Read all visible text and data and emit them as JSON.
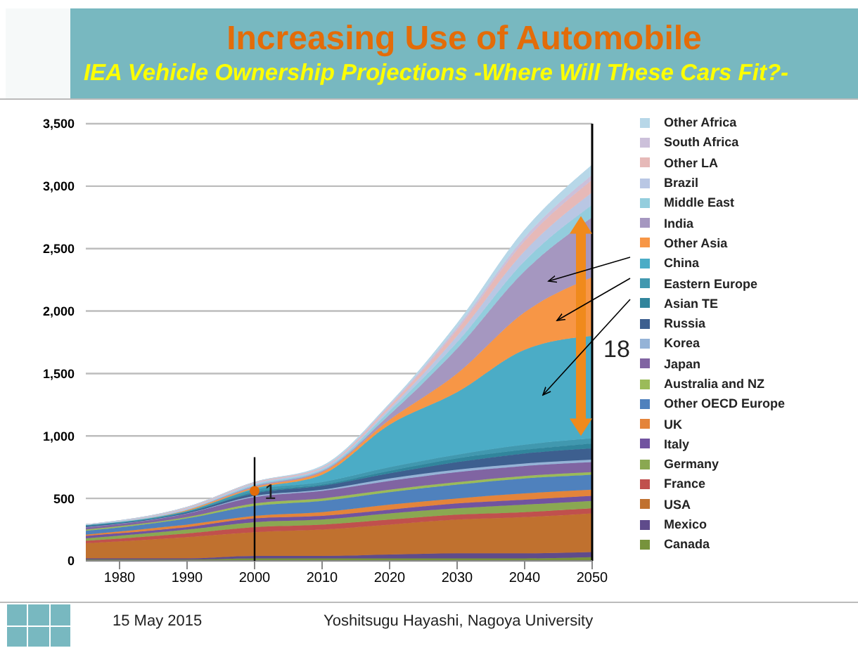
{
  "chart_data": {
    "type": "area",
    "title": "Increasing Use of Automobile",
    "subtitle": "IEA Vehicle Ownership Projections  -Where Will These Cars Fit?-",
    "stacked": true,
    "legend": "right",
    "grid": "y",
    "x": [
      1975,
      1990,
      2000,
      2010,
      2020,
      2030,
      2040,
      2050
    ],
    "xlim": [
      1975,
      2050
    ],
    "xticks": [
      1980,
      1990,
      2000,
      2010,
      2020,
      2030,
      2040,
      2050
    ],
    "ylim": [
      0,
      3500
    ],
    "yticks": [
      0,
      500,
      {
        "value": 1000,
        "label": "1,000"
      },
      {
        "value": 1500,
        "label": "1,500"
      },
      {
        "value": 2000,
        "label": "2,000"
      },
      {
        "value": 2500,
        "label": "2,500"
      },
      {
        "value": 3000,
        "label": "3,000"
      },
      {
        "value": 3500,
        "label": "3,500"
      }
    ],
    "ref_lines": [
      {
        "axis": "x",
        "value": 2050,
        "color": "#000000"
      }
    ],
    "annotations": [
      {
        "text": "1",
        "x": 2000,
        "y": 560
      },
      {
        "text": "18",
        "x": 2050,
        "y": 1700
      },
      "15 May 2015",
      "Yoshitsugu Hayashi, Nagoya University"
    ],
    "series": [
      {
        "name": "Canada",
        "color": "#77933c",
        "values": [
          10,
          10,
          20,
          20,
          20,
          20,
          20,
          30
        ]
      },
      {
        "name": "Mexico",
        "color": "#5f4b8b",
        "values": [
          10,
          10,
          20,
          20,
          30,
          40,
          40,
          40
        ]
      },
      {
        "name": "USA",
        "color": "#c0712f",
        "values": [
          120,
          170,
          190,
          210,
          240,
          270,
          290,
          310
        ]
      },
      {
        "name": "France",
        "color": "#c0504d",
        "values": [
          20,
          30,
          40,
          40,
          40,
          40,
          40,
          40
        ]
      },
      {
        "name": "Germany",
        "color": "#8aa851",
        "values": [
          20,
          30,
          40,
          40,
          50,
          50,
          60,
          60
        ]
      },
      {
        "name": "Italy",
        "color": "#7153a0",
        "values": [
          20,
          20,
          30,
          30,
          30,
          40,
          40,
          40
        ]
      },
      {
        "name": "UK",
        "color": "#e4843a",
        "values": [
          10,
          20,
          20,
          30,
          40,
          40,
          50,
          50
        ]
      },
      {
        "name": "Other OECD Europe",
        "color": "#4f81bd",
        "values": [
          30,
          50,
          80,
          90,
          100,
          110,
          120,
          120
        ]
      },
      {
        "name": "Australia and NZ",
        "color": "#9bbb59",
        "values": [
          10,
          10,
          20,
          20,
          20,
          20,
          20,
          20
        ]
      },
      {
        "name": "Japan",
        "color": "#8064a2",
        "values": [
          20,
          30,
          50,
          60,
          70,
          80,
          80,
          80
        ]
      },
      {
        "name": "Korea",
        "color": "#95b3d7",
        "values": [
          0,
          0,
          10,
          10,
          20,
          20,
          20,
          20
        ]
      },
      {
        "name": "Russia",
        "color": "#3d5f8f",
        "values": [
          10,
          10,
          20,
          30,
          40,
          60,
          80,
          90
        ]
      },
      {
        "name": "Asian TE",
        "color": "#31859c",
        "values": [
          0,
          0,
          10,
          10,
          20,
          30,
          30,
          40
        ]
      },
      {
        "name": "Eastern Europe",
        "color": "#4198af",
        "values": [
          10,
          10,
          20,
          20,
          30,
          30,
          40,
          40
        ]
      },
      {
        "name": "China",
        "color": "#4bacc6",
        "values": [
          0,
          0,
          10,
          60,
          340,
          500,
          760,
          820
        ]
      },
      {
        "name": "Other Asia",
        "color": "#f79646",
        "values": [
          0,
          10,
          10,
          20,
          40,
          150,
          300,
          470
        ]
      },
      {
        "name": "India",
        "color": "#a597c0",
        "values": [
          0,
          0,
          10,
          10,
          40,
          200,
          330,
          480
        ]
      },
      {
        "name": "Middle East",
        "color": "#93cddd",
        "values": [
          0,
          0,
          10,
          10,
          30,
          50,
          80,
          100
        ]
      },
      {
        "name": "Brazil",
        "color": "#b9c7e4",
        "values": [
          0,
          10,
          10,
          10,
          20,
          50,
          80,
          100
        ]
      },
      {
        "name": "Other LA",
        "color": "#e6b9b8",
        "values": [
          0,
          10,
          10,
          10,
          20,
          50,
          80,
          100
        ]
      },
      {
        "name": "South Africa",
        "color": "#ccc0da",
        "values": [
          0,
          0,
          0,
          0,
          10,
          20,
          30,
          40
        ]
      },
      {
        "name": "Other Africa",
        "color": "#b7d7e8",
        "values": [
          0,
          0,
          0,
          10,
          10,
          30,
          60,
          80
        ]
      }
    ]
  }
}
